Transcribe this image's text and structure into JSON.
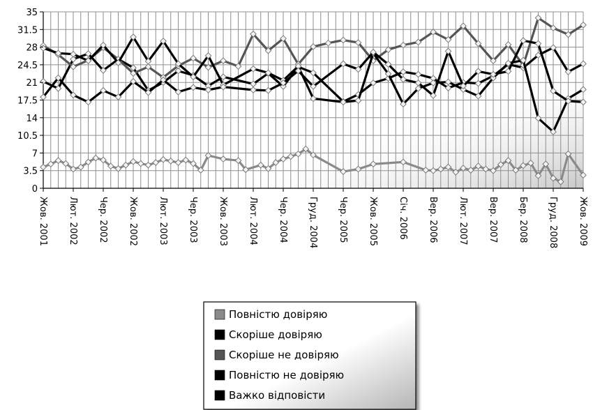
{
  "chart_data": {
    "type": "line",
    "title": "",
    "xlabel": "",
    "ylabel": "",
    "ylim": [
      0,
      35
    ],
    "grid": true,
    "legend_position": "bottom-center",
    "y_ticks": [
      "0",
      "3.5",
      "7",
      "10.5",
      "14",
      "17.5",
      "21",
      "24.5",
      "28",
      "31.5",
      "35"
    ],
    "x_tick_labels": [
      "Жов. 2001",
      "Лют. 2002",
      "Чер. 2002",
      "Жов. 2002",
      "Лют. 2003",
      "Чер. 2003",
      "Жов. 2003",
      "Лют. 2004",
      "Чер. 2004",
      "Груд. 2004",
      "Чер. 2005",
      "Жов. 2005",
      "Січ. 2006",
      "Вер. 2006",
      "Лют. 2007",
      "Вер. 2007",
      "Бер. 2008",
      "Груд. 2008",
      "Жов. 2009"
    ],
    "x_tick_positions": [
      0,
      4,
      8,
      12,
      16,
      20,
      24,
      28,
      32,
      36,
      40,
      44,
      48,
      52,
      56,
      60,
      64,
      68,
      72
    ],
    "series": [
      {
        "name": "Повністю довіряю",
        "color": "#8a8a8a",
        "x": [
          0,
          1,
          2,
          3,
          4,
          5,
          6,
          7,
          8,
          9,
          10,
          11,
          12,
          13,
          14,
          15,
          16,
          17,
          18,
          19,
          20,
          21,
          22,
          24,
          26,
          27,
          29,
          30,
          31,
          32,
          33,
          34,
          35,
          36,
          40,
          42,
          44,
          48,
          51,
          52,
          53,
          54,
          55,
          56,
          57,
          58,
          59,
          60,
          61,
          62,
          63,
          64,
          65,
          66,
          67,
          68,
          69,
          70,
          72
        ],
        "values": [
          4.2,
          4.8,
          5.5,
          4.9,
          3.8,
          4.2,
          5.2,
          6.0,
          5.6,
          4.4,
          3.9,
          4.6,
          5.3,
          4.9,
          4.6,
          5.1,
          5.7,
          5.4,
          5.1,
          5.6,
          4.9,
          3.6,
          6.5,
          5.8,
          5.5,
          3.7,
          4.6,
          3.9,
          5.1,
          5.8,
          6.3,
          6.8,
          7.8,
          6.6,
          3.3,
          3.8,
          4.8,
          5.2,
          3.6,
          3.5,
          3.8,
          4.2,
          3.2,
          4.0,
          3.6,
          4.4,
          3.8,
          3.5,
          4.7,
          5.5,
          3.6,
          4.5,
          5.0,
          2.5,
          4.8,
          2.0,
          1.3,
          6.8,
          2.6
        ]
      },
      {
        "name": "Скоріше довіряю",
        "color": "#000000",
        "x": [
          0,
          2,
          4,
          6,
          8,
          10,
          12,
          14,
          16,
          18,
          20,
          22,
          24,
          28,
          30,
          32,
          34,
          36,
          40,
          42,
          44,
          46,
          48,
          50,
          52,
          54,
          56,
          58,
          60,
          62,
          64,
          66,
          68,
          70,
          72
        ],
        "values": [
          21.2,
          19.8,
          25.6,
          26.7,
          23.4,
          25.6,
          23.9,
          19.4,
          21.0,
          23.3,
          22.4,
          20.3,
          22.1,
          20.7,
          22.8,
          20.2,
          24.1,
          22.9,
          17.2,
          18.6,
          20.9,
          21.8,
          23.1,
          22.6,
          21.8,
          19.9,
          21.0,
          20.8,
          22.3,
          24.6,
          23.9,
          26.4,
          27.9,
          23.1,
          24.7
        ]
      },
      {
        "name": "Скоріше не довіряю",
        "color": "#555555",
        "x": [
          0,
          2,
          4,
          6,
          8,
          10,
          12,
          14,
          16,
          18,
          20,
          22,
          24,
          26,
          28,
          30,
          32,
          34,
          36,
          38,
          40,
          42,
          44,
          46,
          48,
          50,
          52,
          54,
          56,
          58,
          60,
          62,
          64,
          66,
          68,
          70,
          72
        ],
        "values": [
          28.3,
          26.5,
          24.1,
          25.4,
          27.9,
          25.6,
          22.8,
          24.1,
          22.0,
          24.3,
          25.8,
          24.0,
          25.3,
          24.2,
          30.6,
          27.3,
          29.7,
          24.6,
          28.1,
          28.8,
          29.4,
          28.9,
          25.3,
          27.5,
          28.4,
          29.0,
          31.0,
          29.5,
          32.2,
          28.7,
          25.3,
          28.5,
          24.4,
          33.8,
          31.8,
          30.5,
          32.4
        ]
      },
      {
        "name": "Повністю не довіряю",
        "color": "#000000",
        "x": [
          0,
          2,
          4,
          6,
          8,
          10,
          12,
          14,
          16,
          18,
          20,
          22,
          24,
          28,
          30,
          32,
          34,
          36,
          40,
          42,
          44,
          46,
          48,
          50,
          52,
          54,
          56,
          58,
          60,
          62,
          64,
          66,
          68,
          70,
          72
        ],
        "values": [
          27.8,
          26.8,
          26.6,
          25.3,
          28.4,
          24.9,
          30.0,
          25.2,
          29.2,
          24.7,
          22.1,
          26.3,
          20.5,
          23.7,
          22.9,
          21.4,
          24.2,
          17.8,
          17.1,
          17.4,
          26.8,
          22.7,
          16.7,
          19.8,
          20.9,
          21.1,
          19.6,
          18.3,
          21.9,
          24.8,
          25.4,
          13.9,
          11.2,
          17.8,
          19.6
        ]
      },
      {
        "name": "Важко відповісти",
        "color": "#000000",
        "x": [
          0,
          2,
          4,
          6,
          8,
          10,
          12,
          14,
          16,
          18,
          20,
          22,
          24,
          28,
          30,
          32,
          34,
          36,
          40,
          42,
          44,
          46,
          48,
          50,
          52,
          54,
          56,
          58,
          60,
          62,
          64,
          66,
          68,
          70,
          72
        ],
        "values": [
          18.1,
          21.9,
          18.5,
          17.1,
          19.4,
          18.1,
          21.2,
          19.0,
          21.5,
          19.1,
          20.0,
          19.5,
          20.1,
          19.5,
          19.4,
          20.9,
          23.3,
          20.2,
          24.7,
          23.6,
          27.0,
          24.6,
          21.6,
          20.9,
          18.4,
          27.2,
          20.3,
          23.2,
          22.6,
          23.2,
          29.3,
          28.7,
          19.3,
          17.3,
          17.1
        ]
      }
    ]
  }
}
